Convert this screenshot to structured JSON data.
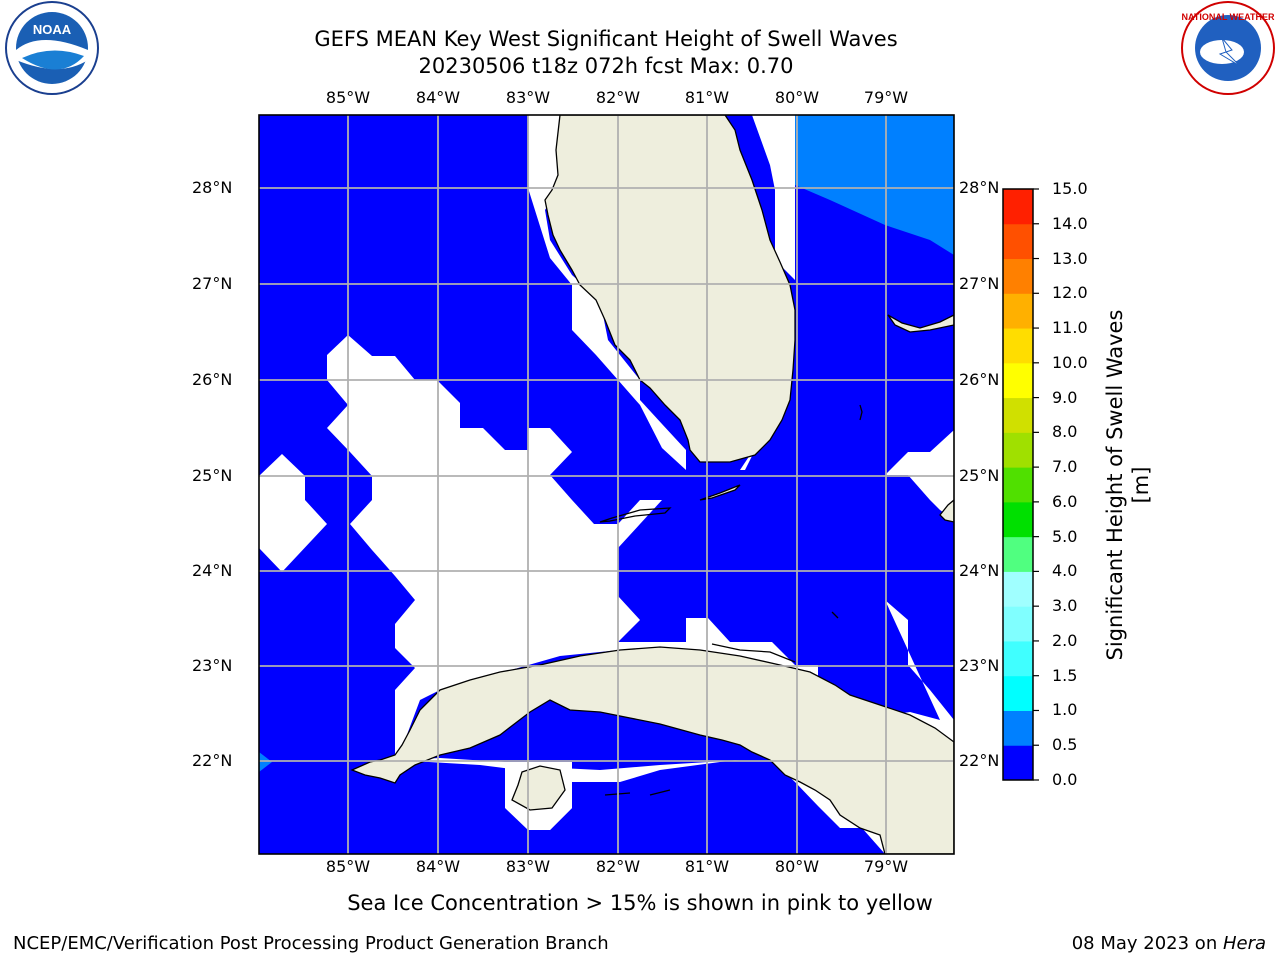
{
  "title": {
    "line1": "GEFS MEAN Key West Significant Height of Swell Waves",
    "line2": "20230506 t18z 072h fcst   Max: 0.70"
  },
  "logos": {
    "left": "noara-logo",
    "right": "national-weather-service-logo"
  },
  "map": {
    "lon_labels": [
      "85°W",
      "84°W",
      "83°W",
      "82°W",
      "81°W",
      "80°W",
      "79°W"
    ],
    "lat_labels": [
      "28°N",
      "27°N",
      "26°N",
      "25°N",
      "24°N",
      "23°N",
      "22°N"
    ],
    "extent": {
      "lon": [
        -86.0,
        -78.3
      ],
      "lat": [
        21.0,
        28.75
      ]
    },
    "grid": true,
    "colors": {
      "ocean_low": "#0000ff",
      "ocean_mid": "#0080ff",
      "land": "#eeeedd",
      "missing": "#ffffff",
      "gridline": "#b0b0b0"
    }
  },
  "colorbar": {
    "label": "Significant Height of Swell Waves [m]",
    "ticks": [
      "0.0",
      "0.5",
      "1.0",
      "1.5",
      "2.0",
      "3.0",
      "4.0",
      "5.0",
      "6.0",
      "7.0",
      "8.0",
      "9.0",
      "10.0",
      "11.0",
      "12.0",
      "13.0",
      "14.0",
      "15.0"
    ],
    "colors": [
      "#0000ff",
      "#0080ff",
      "#00ffff",
      "#40ffff",
      "#80ffff",
      "#a0ffff",
      "#50ff80",
      "#00e000",
      "#50e000",
      "#a0e000",
      "#d0e000",
      "#ffff00",
      "#ffdd00",
      "#ffb000",
      "#ff8000",
      "#ff5000",
      "#ff2000",
      "#ff0000"
    ]
  },
  "footer": {
    "ice_note": "Sea Ice Concentration > 15% is shown in pink to yellow",
    "credit": "NCEP/EMC/Verification Post Processing Product Generation Branch",
    "date": "08 May 2023 on ",
    "machine": "Hera"
  }
}
